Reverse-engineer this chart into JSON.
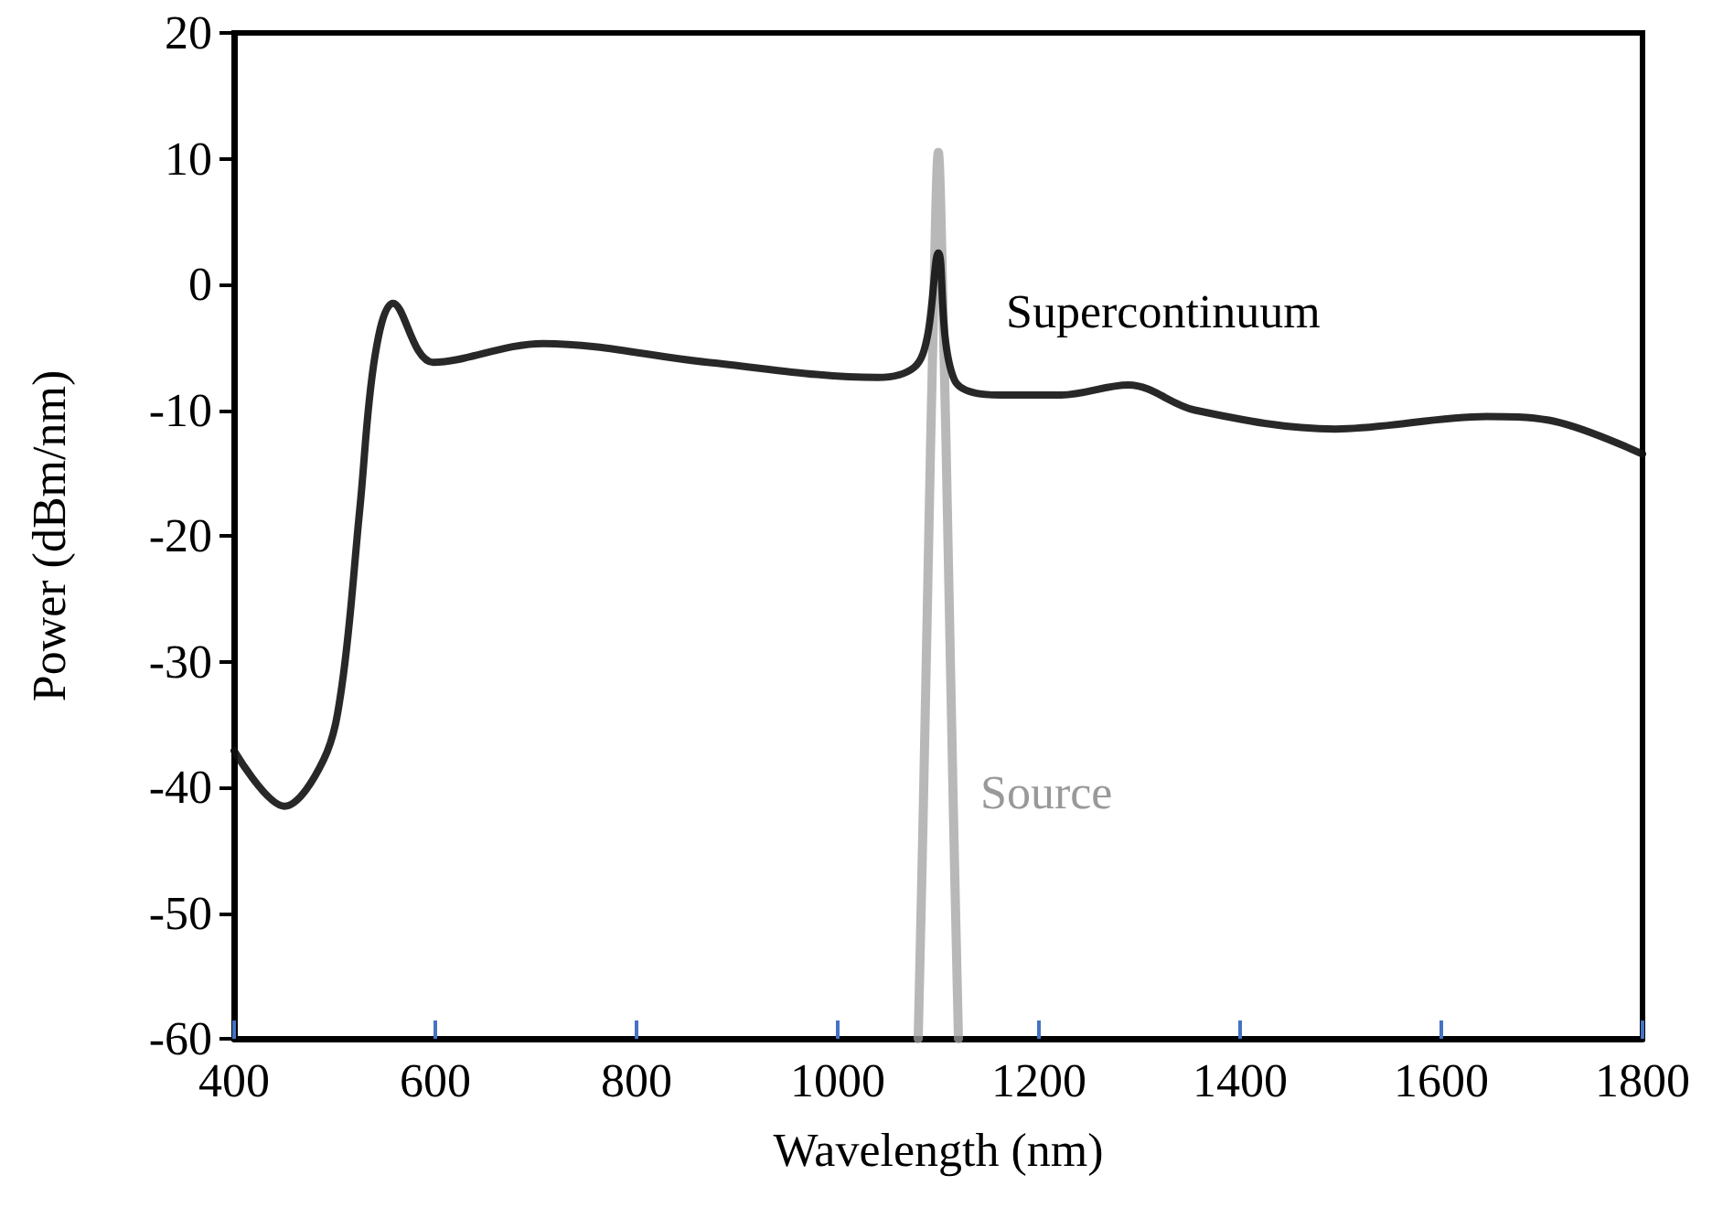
{
  "chart_data": {
    "type": "line",
    "xlabel": "Wavelength (nm)",
    "ylabel": "Power (dBm/nm)",
    "xlim": [
      400,
      1800
    ],
    "xticks": [
      400,
      600,
      800,
      1000,
      1200,
      1400,
      1600,
      1800
    ],
    "ylim": [
      -60,
      20
    ],
    "yticks": [
      -60,
      -50,
      -40,
      -30,
      -20,
      -10,
      0,
      10,
      20
    ],
    "grid": false,
    "legend": false,
    "marker": "none",
    "line_style": "solid",
    "series": [
      {
        "name": "Supercontinuum",
        "color": "#111111",
        "x": [
          400,
          450,
          489,
          507,
          525,
          540,
          558,
          598,
          707,
          871,
          1040,
          1076,
          1089,
          1100,
          1116,
          1162,
          1222,
          1289,
          1355,
          1495,
          1645,
          1707,
          1800
        ],
        "values": [
          -37.1,
          -41.5,
          -37.8,
          -32,
          -17.8,
          -5.7,
          -1.5,
          -6.2,
          -4.7,
          -6.2,
          -7.4,
          -6.6,
          -4.2,
          2.5,
          -7.6,
          -8.8,
          -8.8,
          -8,
          -10,
          -11.5,
          -10.5,
          -10.8,
          -13.5
        ]
      },
      {
        "name": "Source",
        "color": "#a0a0a0",
        "x": [
          1080,
          1085,
          1090,
          1095,
          1100,
          1105,
          1110,
          1115,
          1120
        ],
        "values": [
          -60,
          -42,
          -22,
          -3,
          10.5,
          -3,
          -22,
          -42,
          -60
        ]
      }
    ]
  }
}
